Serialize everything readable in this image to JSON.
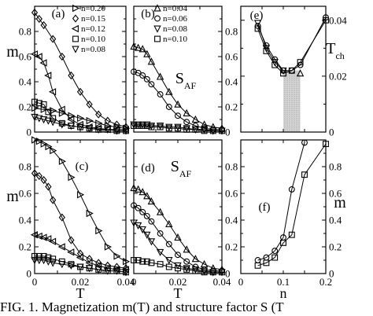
{
  "caption": "FIG. 1. Magnetization m(T) and structure factor S (T",
  "colors": {
    "ink": "#000000",
    "shade": "#888888"
  },
  "chart_data": [
    {
      "id": "a",
      "type": "line",
      "panel_label": "(a)",
      "ylabel": "m",
      "xlabel": "",
      "xlim": [
        0,
        0.04
      ],
      "ylim": [
        0,
        1.0
      ],
      "yticks": [
        "0",
        "0.2",
        "0.4",
        "0.6",
        "0.8"
      ],
      "xticks": [],
      "legend": [
        "n=0.20",
        "n=0.15",
        "n=0.12",
        "n=0.10",
        "n=0.08"
      ],
      "series": [
        {
          "name": "n=0.20",
          "marker": "triangle-right",
          "x": [
            0,
            0.004,
            0.008,
            0.012,
            0.016,
            0.02,
            0.024,
            0.028,
            0.032,
            0.036,
            0.04
          ],
          "y": [
            0.19,
            0.18,
            0.17,
            0.15,
            0.13,
            0.11,
            0.09,
            0.07,
            0.05,
            0.04,
            0.03
          ]
        },
        {
          "name": "n=0.15",
          "marker": "diamond",
          "x": [
            0,
            0.002,
            0.004,
            0.008,
            0.012,
            0.016,
            0.02,
            0.024,
            0.028,
            0.032,
            0.036,
            0.04
          ],
          "y": [
            0.95,
            0.9,
            0.85,
            0.74,
            0.6,
            0.45,
            0.32,
            0.22,
            0.14,
            0.09,
            0.06,
            0.04
          ]
        },
        {
          "name": "n=0.12",
          "marker": "triangle-left",
          "x": [
            0,
            0.002,
            0.004,
            0.006,
            0.008,
            0.012,
            0.016,
            0.02,
            0.024,
            0.028,
            0.032,
            0.036,
            0.04
          ],
          "y": [
            0.62,
            0.6,
            0.55,
            0.45,
            0.32,
            0.18,
            0.1,
            0.06,
            0.04,
            0.03,
            0.02,
            0.02,
            0.02
          ]
        },
        {
          "name": "n=0.10",
          "marker": "square",
          "x": [
            0,
            0.002,
            0.004,
            0.006,
            0.008,
            0.012,
            0.016,
            0.02,
            0.024,
            0.028,
            0.032,
            0.036,
            0.04
          ],
          "y": [
            0.24,
            0.23,
            0.22,
            0.16,
            0.11,
            0.07,
            0.05,
            0.04,
            0.03,
            0.02,
            0.02,
            0.01,
            0.01
          ]
        },
        {
          "name": "n=0.08",
          "marker": "triangle-down",
          "x": [
            0,
            0.002,
            0.004,
            0.006,
            0.008,
            0.012,
            0.016,
            0.02,
            0.024,
            0.028,
            0.032,
            0.036,
            0.04
          ],
          "y": [
            0.12,
            0.11,
            0.1,
            0.09,
            0.08,
            0.06,
            0.05,
            0.04,
            0.03,
            0.02,
            0.02,
            0.01,
            0.01
          ]
        }
      ]
    },
    {
      "id": "b",
      "type": "line",
      "panel_label": "(b)",
      "ylabel": "S",
      "ylabel_sub": "AF",
      "xlabel": "",
      "xlim": [
        0,
        0.04
      ],
      "ylim": [
        0,
        1.0
      ],
      "yticks": [],
      "xticks": [],
      "legend": [
        "n=0.04",
        "n=0.06",
        "n=0.08",
        "n=0.10"
      ],
      "series": [
        {
          "name": "n=0.04",
          "marker": "triangle-up",
          "x": [
            0,
            0.002,
            0.004,
            0.006,
            0.008,
            0.012,
            0.016,
            0.02,
            0.024,
            0.028,
            0.032,
            0.036,
            0.04
          ],
          "y": [
            0.68,
            0.67,
            0.66,
            0.62,
            0.56,
            0.44,
            0.32,
            0.22,
            0.15,
            0.1,
            0.06,
            0.04,
            0.03
          ]
        },
        {
          "name": "n=0.06",
          "marker": "circle",
          "x": [
            0,
            0.002,
            0.004,
            0.006,
            0.008,
            0.012,
            0.016,
            0.02,
            0.024,
            0.028,
            0.032,
            0.036,
            0.04
          ],
          "y": [
            0.48,
            0.47,
            0.45,
            0.42,
            0.38,
            0.3,
            0.2,
            0.13,
            0.08,
            0.05,
            0.03,
            0.02,
            0.02
          ]
        },
        {
          "name": "n=0.08",
          "marker": "triangle-down",
          "x": [
            0,
            0.002,
            0.004,
            0.006,
            0.008,
            0.012,
            0.016,
            0.02,
            0.024,
            0.028,
            0.032,
            0.036,
            0.04
          ],
          "y": [
            0.06,
            0.06,
            0.06,
            0.06,
            0.05,
            0.05,
            0.04,
            0.04,
            0.03,
            0.02,
            0.02,
            0.01,
            0.01
          ]
        },
        {
          "name": "n=0.10",
          "marker": "square",
          "x": [
            0,
            0.002,
            0.004,
            0.006,
            0.008,
            0.012,
            0.016,
            0.02,
            0.024,
            0.028,
            0.032,
            0.036,
            0.04
          ],
          "y": [
            0.05,
            0.05,
            0.05,
            0.05,
            0.04,
            0.04,
            0.03,
            0.03,
            0.02,
            0.02,
            0.01,
            0.01,
            0.01
          ]
        }
      ]
    },
    {
      "id": "e",
      "type": "line",
      "panel_label": "(e)",
      "ylabel": "T",
      "ylabel_sub": "ch",
      "xlabel": "",
      "xlim": [
        0,
        0.2
      ],
      "ylim": [
        0,
        0.045
      ],
      "yticks": [
        "0",
        "0.02",
        "0.04"
      ],
      "xticks": [],
      "shaded_x": [
        0.1,
        0.14
      ],
      "series": [
        {
          "name": "circle",
          "marker": "circle",
          "x": [
            0.04,
            0.06,
            0.08,
            0.1,
            0.12,
            0.14,
            0.2
          ],
          "y": [
            0.038,
            0.031,
            0.026,
            0.022,
            0.022,
            0.024,
            0.041
          ]
        },
        {
          "name": "square",
          "marker": "square",
          "x": [
            0.04,
            0.06,
            0.08,
            0.1,
            0.12,
            0.14,
            0.2
          ],
          "y": [
            0.037,
            0.029,
            0.024,
            0.021,
            0.022,
            0.025,
            0.04
          ]
        },
        {
          "name": "triangle-down",
          "marker": "triangle-down",
          "x": [
            0.04,
            0.06,
            0.08,
            0.1
          ],
          "y": [
            0.039,
            0.03,
            0.025,
            0.022
          ]
        },
        {
          "name": "triangle-up",
          "marker": "triangle-up",
          "x": [
            0.14
          ],
          "y": [
            0.021
          ]
        }
      ]
    },
    {
      "id": "c",
      "type": "line",
      "panel_label": "(c)",
      "ylabel": "m",
      "xlabel": "T",
      "xlim": [
        0,
        0.04
      ],
      "ylim": [
        0,
        1.0
      ],
      "yticks": [
        "0",
        "0.2",
        "0.4",
        "0.6",
        "0.8"
      ],
      "xticks": [
        "0",
        "0.02",
        "0.04"
      ],
      "series": [
        {
          "name": "triangle-right",
          "marker": "triangle-right",
          "x": [
            0,
            0.002,
            0.004,
            0.006,
            0.008,
            0.012,
            0.016,
            0.02,
            0.024,
            0.028,
            0.032,
            0.036,
            0.04
          ],
          "y": [
            1.0,
            0.99,
            0.97,
            0.95,
            0.92,
            0.84,
            0.72,
            0.59,
            0.45,
            0.32,
            0.2,
            0.13,
            0.09
          ]
        },
        {
          "name": "diamond",
          "marker": "diamond",
          "x": [
            0,
            0.002,
            0.004,
            0.006,
            0.008,
            0.012,
            0.016,
            0.02,
            0.024,
            0.028,
            0.032,
            0.036,
            0.04
          ],
          "y": [
            0.75,
            0.73,
            0.7,
            0.65,
            0.55,
            0.42,
            0.25,
            0.15,
            0.11,
            0.08,
            0.06,
            0.05,
            0.04
          ]
        },
        {
          "name": "triangle-left",
          "marker": "triangle-left",
          "x": [
            0,
            0.002,
            0.004,
            0.006,
            0.008,
            0.012,
            0.016,
            0.02,
            0.024,
            0.028,
            0.032,
            0.036,
            0.04
          ],
          "y": [
            0.29,
            0.28,
            0.27,
            0.26,
            0.24,
            0.2,
            0.16,
            0.12,
            0.08,
            0.06,
            0.04,
            0.03,
            0.03
          ]
        },
        {
          "name": "square",
          "marker": "square",
          "x": [
            0,
            0.002,
            0.004,
            0.006,
            0.008,
            0.012,
            0.016,
            0.02,
            0.024,
            0.028,
            0.032,
            0.036,
            0.04
          ],
          "y": [
            0.13,
            0.13,
            0.13,
            0.12,
            0.11,
            0.09,
            0.07,
            0.05,
            0.04,
            0.03,
            0.02,
            0.02,
            0.01
          ]
        },
        {
          "name": "triangle-down",
          "marker": "triangle-down",
          "x": [
            0,
            0.002,
            0.004,
            0.006,
            0.008,
            0.012,
            0.016,
            0.02,
            0.024,
            0.028,
            0.032,
            0.036,
            0.04
          ],
          "y": [
            0.1,
            0.1,
            0.1,
            0.09,
            0.08,
            0.07,
            0.06,
            0.05,
            0.04,
            0.03,
            0.02,
            0.02,
            0.01
          ]
        }
      ]
    },
    {
      "id": "d",
      "type": "line",
      "panel_label": "(d)",
      "ylabel": "S",
      "ylabel_sub": "AF",
      "xlabel": "T",
      "xlim": [
        0,
        0.04
      ],
      "ylim": [
        0,
        1.0
      ],
      "yticks": [],
      "xticks": [
        "0",
        "0.02",
        "0.04"
      ],
      "series": [
        {
          "name": "triangle-up",
          "marker": "triangle-up",
          "x": [
            0,
            0.002,
            0.004,
            0.006,
            0.008,
            0.012,
            0.016,
            0.02,
            0.024,
            0.028,
            0.032,
            0.036,
            0.04
          ],
          "y": [
            0.64,
            0.63,
            0.61,
            0.58,
            0.54,
            0.46,
            0.37,
            0.27,
            0.18,
            0.11,
            0.07,
            0.04,
            0.03
          ]
        },
        {
          "name": "circle",
          "marker": "circle",
          "x": [
            0,
            0.002,
            0.004,
            0.006,
            0.008,
            0.012,
            0.016,
            0.02,
            0.024,
            0.028,
            0.032,
            0.036,
            0.04
          ],
          "y": [
            0.51,
            0.49,
            0.46,
            0.43,
            0.39,
            0.3,
            0.22,
            0.14,
            0.09,
            0.05,
            0.03,
            0.02,
            0.02
          ]
        },
        {
          "name": "triangle-down",
          "marker": "triangle-down",
          "x": [
            0,
            0.002,
            0.004,
            0.006,
            0.008,
            0.012,
            0.016,
            0.02,
            0.024,
            0.028,
            0.032,
            0.036,
            0.04
          ],
          "y": [
            0.38,
            0.36,
            0.33,
            0.29,
            0.24,
            0.16,
            0.1,
            0.06,
            0.04,
            0.03,
            0.02,
            0.01,
            0.01
          ]
        },
        {
          "name": "square",
          "marker": "square",
          "x": [
            0,
            0.002,
            0.004,
            0.006,
            0.008,
            0.012,
            0.016,
            0.02,
            0.024,
            0.028,
            0.032,
            0.036,
            0.04
          ],
          "y": [
            0.1,
            0.1,
            0.09,
            0.09,
            0.08,
            0.07,
            0.05,
            0.04,
            0.03,
            0.02,
            0.01,
            0.01,
            0.01
          ]
        }
      ]
    },
    {
      "id": "f",
      "type": "line",
      "panel_label": "(f)",
      "ylabel": "m",
      "xlabel": "n",
      "xlim": [
        0,
        0.2
      ],
      "ylim": [
        0,
        1.0
      ],
      "yticks": [
        "0",
        "0.2",
        "0.4",
        "0.6",
        "0.8"
      ],
      "xticks": [
        "0",
        "0.1",
        "0.2"
      ],
      "series": [
        {
          "name": "circle",
          "marker": "circle",
          "x": [
            0.04,
            0.06,
            0.08,
            0.1,
            0.12,
            0.15
          ],
          "y": [
            0.1,
            0.12,
            0.17,
            0.27,
            0.63,
            0.98
          ]
        },
        {
          "name": "square",
          "marker": "square",
          "x": [
            0.04,
            0.06,
            0.08,
            0.1,
            0.12,
            0.15,
            0.2
          ],
          "y": [
            0.06,
            0.08,
            0.12,
            0.23,
            0.29,
            0.74,
            0.97
          ]
        }
      ]
    }
  ]
}
